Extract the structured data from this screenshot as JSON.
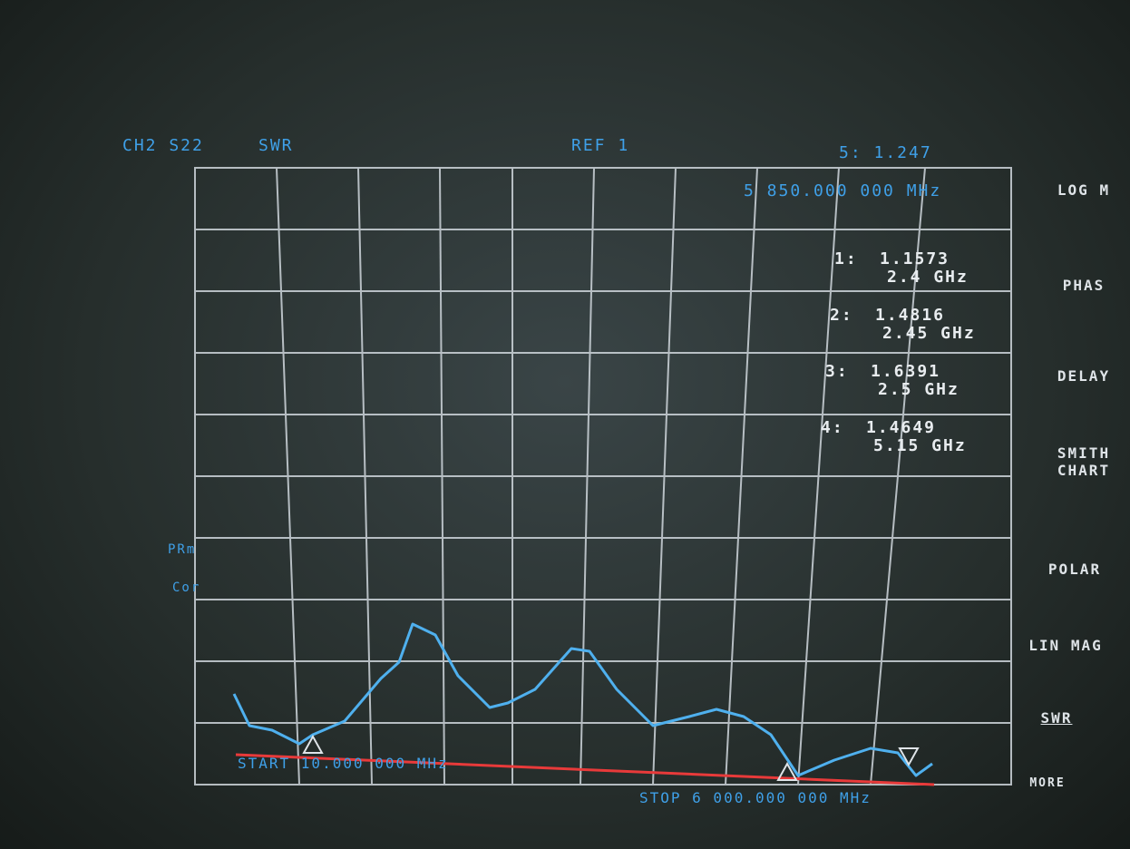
{
  "header": {
    "channel": "CH2 S22",
    "format": "SWR",
    "reference": "REF 1",
    "active_marker": "5: 1.247",
    "active_marker_frequency": "5 850.000 000 MHz"
  },
  "markers": [
    {
      "label": "1:",
      "value": "1.1573",
      "frequency": "2.4 GHz"
    },
    {
      "label": "2:",
      "value": "1.4816",
      "frequency": "2.45 GHz"
    },
    {
      "label": "3:",
      "value": "1.6391",
      "frequency": "2.5 GHz"
    },
    {
      "label": "4:",
      "value": "1.4649",
      "frequency": "5.15 GHz"
    }
  ],
  "status": [
    "PRm",
    "Cor"
  ],
  "footer": {
    "start": "START 10.000 000 MHz",
    "stop": "STOP 6 000.000 000 MHz"
  },
  "softkeys": [
    "LOG M",
    "PHAS",
    "DELAY",
    "SMITH CHART",
    "POLAR",
    "LIN MAG",
    "SWR",
    "MORE"
  ]
}
